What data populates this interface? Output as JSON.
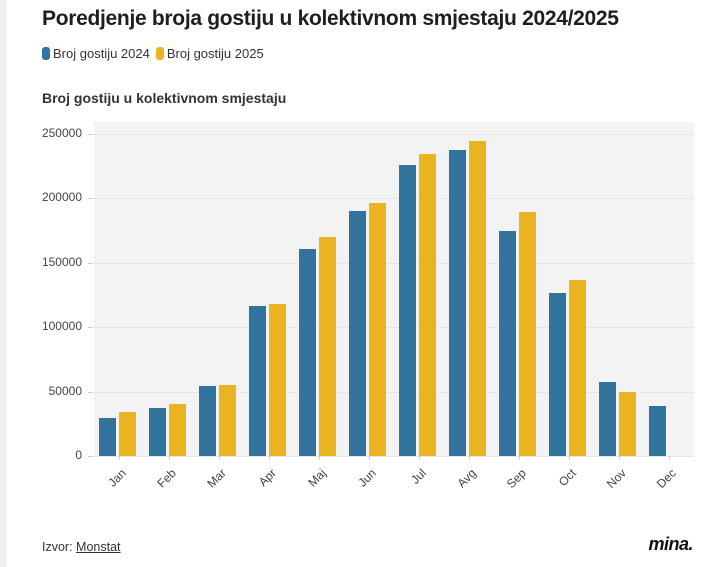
{
  "title": "Poredjenje broja gostiju u kolektivnom smjestaju 2024/2025",
  "legend": [
    {
      "label": "Broj gostiju 2024",
      "color": "#31739c"
    },
    {
      "label": "Broj gostiju 2025",
      "color": "#eab320"
    }
  ],
  "subtitle": "Broj gostiju u kolektivnom smjestaju",
  "footer": {
    "source_prefix": "Izvor: ",
    "source_link": "Monstat",
    "logo": "mina."
  },
  "chart_data": {
    "type": "bar",
    "title": "Poredjenje broja gostiju u kolektivnom smjestaju 2024/2025",
    "subtitle": "Broj gostiju u kolektivnom smjestaju",
    "xlabel": "",
    "ylabel": "",
    "categories": [
      "Jan",
      "Feb",
      "Mar",
      "Apr",
      "Maj",
      "Jun",
      "Jul",
      "Avg",
      "Sep",
      "Oct",
      "Nov",
      "Dec"
    ],
    "series": [
      {
        "name": "Broj gostiju 2024",
        "color": "#31739c",
        "values": [
          29700,
          37500,
          54700,
          116600,
          160400,
          190100,
          225900,
          237800,
          174600,
          126400,
          57300,
          39100
        ]
      },
      {
        "name": "Broj gostiju 2025",
        "color": "#eab320",
        "values": [
          34400,
          40000,
          55000,
          118000,
          169800,
          196300,
          234100,
          244800,
          189100,
          137000,
          49700,
          null
        ]
      }
    ],
    "ylim": [
      0,
      250000
    ],
    "yticks": [
      0,
      50000,
      100000,
      150000,
      200000,
      250000
    ],
    "ytick_labels": [
      "0",
      "50000",
      "100000",
      "150000",
      "200000",
      "250000"
    ],
    "grid": true,
    "legend_position": "top-left"
  }
}
